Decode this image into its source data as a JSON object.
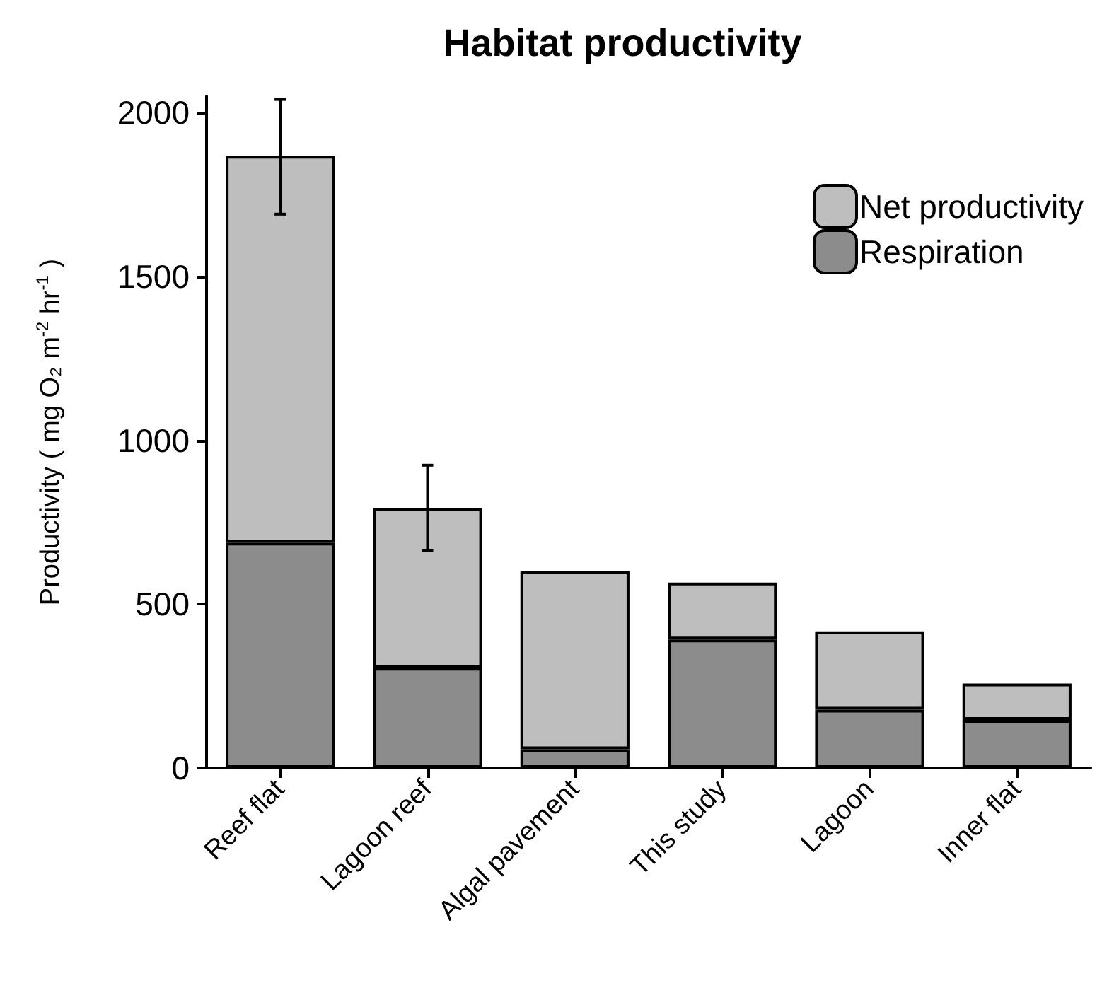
{
  "chart_data": {
    "type": "bar",
    "title": "Habitat productivity",
    "ylabel": "Productivity ( mg O₂ m$^{-2}$ hr$^{-1}$ )",
    "categories": [
      "Reef flat",
      "Lagoon reef",
      "Algal pavement",
      "This study",
      "Lagoon",
      "Inner flat"
    ],
    "series": [
      {
        "name": "Respiration",
        "color": "#8c8c8c",
        "values": [
          688,
          306,
          57,
          392,
          178,
          147
        ]
      },
      {
        "name": "Net productivity",
        "color": "#bebebe",
        "values": [
          1180,
          488,
          543,
          174,
          239,
          111
        ],
        "errors": [
          [
            1690,
            2040
          ],
          [
            664,
            924
          ],
          null,
          null,
          null,
          null
        ]
      }
    ],
    "stacked": true,
    "ylim": [
      0,
      2050
    ],
    "yticks": [
      0,
      500,
      1000,
      1500,
      2000
    ],
    "grid": false,
    "legend": "top right"
  }
}
